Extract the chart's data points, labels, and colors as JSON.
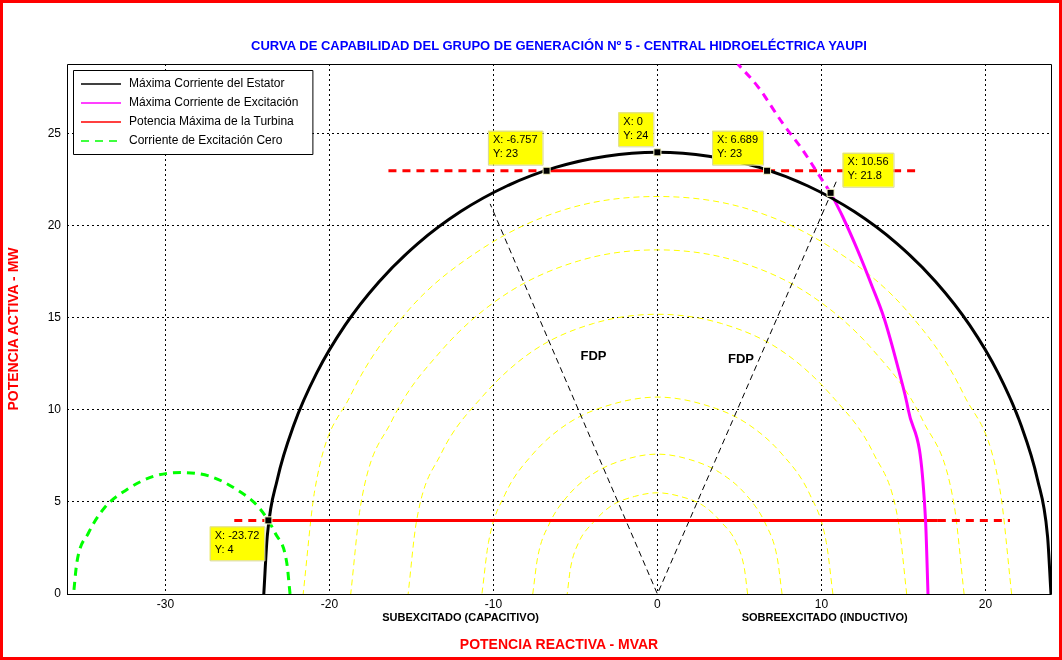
{
  "chart_data": {
    "type": "line",
    "title": "CURVA DE CAPABILIDAD DEL GRUPO DE GENERACIÓN Nº 5 - CENTRAL HIDROELÉCTRICA YAUPI",
    "xlabel": "POTENCIA REACTIVA - MVAR",
    "ylabel": "POTENCIA ACTIVA - MW",
    "xlim": [
      -36,
      24
    ],
    "xticks": [
      -30,
      -20,
      -10,
      0,
      10,
      20
    ],
    "ylim": [
      0,
      28.8
    ],
    "yticks": [
      0,
      5,
      10,
      15,
      20,
      25
    ],
    "grid": true,
    "legend": "top left",
    "annotations": [
      "SUBEXCITADO (CAPACITIVO)",
      "SOBREEXCITADO (INDUCTIVO)",
      "FDP",
      "FDP"
    ],
    "series": [
      {
        "type": "scatter",
        "color": "#000000",
        "marker": "square",
        "x": [
          -23.72,
          -6.757,
          0,
          6.689,
          10.56
        ],
        "values": [
          4,
          23,
          24,
          23,
          21.8
        ],
        "value_labels": [
          "X: -23.72\nY: 4",
          "X: -6.757\nY: 23",
          "X: 0\nY: 24",
          "X: 6.689\nY: 23",
          "X: 10.56\nY: 21.8"
        ]
      },
      {
        "name": "Máxima Corriente del Estator",
        "color": "#000000",
        "line_style": "solid",
        "x": [
          24,
          23.79,
          23.18,
          22.17,
          20.78,
          19.04,
          16.97,
          14.61,
          12,
          9.18,
          6.21,
          3.13,
          0,
          -3.13,
          -6.21,
          -9.18,
          -12,
          -14.61,
          -16.97,
          -19.04,
          -20.78,
          -22.17,
          -23.18,
          -23.79,
          -24
        ],
        "values": [
          0,
          3.13,
          6.21,
          9.18,
          12,
          14.61,
          16.97,
          19.04,
          20.78,
          22.17,
          23.18,
          23.79,
          24,
          23.79,
          23.18,
          22.17,
          20.78,
          19.04,
          16.97,
          14.61,
          12,
          9.18,
          6.21,
          3.13,
          0
        ]
      },
      {
        "name": "Máxima Corriente de Excitación",
        "color": "#ff00ff",
        "line_style": "solid",
        "x": [
          16.5,
          16.35,
          15.3,
          14.7,
          13.8,
          13.1,
          12.2,
          11.3,
          10.56
        ],
        "values": [
          0,
          4,
          10,
          12.2,
          15.05,
          16.7,
          18.7,
          20.5,
          21.8
        ]
      },
      {
        "color": "#ff00ff",
        "line_style": "dashed",
        "x": [
          10.56,
          9.75,
          8.8,
          7.7,
          6.1,
          4.9
        ],
        "values": [
          21.8,
          22.9,
          24.2,
          25.5,
          27.6,
          28.8
        ]
      },
      {
        "name": "Potencia Máxima de la Turbina",
        "color": "#ff0000",
        "line_style": "solid",
        "x": [
          -6.757,
          6.689,
          0,
          -23.72,
          17.1
        ],
        "values": [
          23,
          23,
          null,
          4,
          4
        ]
      },
      {
        "color": "#ff0000",
        "line_style": "dashed",
        "x": [
          -16.4,
          -6.757,
          0,
          6.689,
          15.85,
          0,
          -25.8,
          -23.72,
          0,
          17.1,
          21.5
        ],
        "values": [
          23,
          23,
          null,
          23,
          23,
          null,
          4,
          4,
          null,
          4,
          4
        ]
      },
      {
        "name": "Corriente de Excitación Cero",
        "color": "#00ff00",
        "line_style": "dashed",
        "x": [
          -22.4,
          -22.6,
          -23.3,
          -24.3,
          -25.7,
          -27.3,
          -29,
          -30.7,
          -32.3,
          -33.7,
          -34.7,
          -35.4,
          -35.6
        ],
        "values": [
          0,
          1.7,
          3.3,
          4.7,
          5.7,
          6.4,
          6.6,
          6.4,
          5.7,
          4.7,
          3.3,
          1.7,
          0
        ]
      },
      {
        "color": "#000000",
        "line_style": "dashed",
        "x": [
          10.9,
          0,
          -10.2
        ],
        "values": [
          22.4,
          0,
          21.2
        ]
      },
      {
        "color": "#ffff00",
        "line_style": "dashed",
        "x": [
          5.5,
          5.3,
          4.8,
          3.9,
          2.8,
          1.4,
          0,
          -1.4,
          -2.8,
          -3.9,
          -4.8,
          -5.3,
          -5.5
        ],
        "values": [
          0,
          1.4,
          2.8,
          3.9,
          4.8,
          5.3,
          5.5,
          5.3,
          4.8,
          3.9,
          2.8,
          1.4,
          0
        ]
      },
      {
        "color": "#ffff00",
        "line_style": "dashed",
        "x": [
          7.6,
          7.3,
          6.6,
          5.4,
          3.8,
          2,
          0,
          -2,
          -3.8,
          -5.4,
          -6.6,
          -7.3,
          -7.6
        ],
        "values": [
          0,
          2,
          3.8,
          5.4,
          6.6,
          7.3,
          7.6,
          7.3,
          6.6,
          5.4,
          3.8,
          2,
          0
        ]
      },
      {
        "color": "#ffff00",
        "line_style": "dashed",
        "x": [
          10.7,
          10.3,
          9.3,
          7.6,
          5.4,
          2.8,
          0,
          -2.8,
          -5.4,
          -7.6,
          -9.3,
          -10.3,
          -10.7
        ],
        "values": [
          0,
          2.8,
          5.4,
          7.6,
          9.3,
          10.3,
          10.7,
          10.3,
          9.3,
          7.6,
          5.4,
          2.8,
          0
        ]
      },
      {
        "color": "#ffff00",
        "line_style": "dashed",
        "x": [
          15.2,
          14.7,
          13.2,
          10.7,
          7.6,
          3.9,
          0,
          -3.9,
          -7.6,
          -10.7,
          -13.2,
          -14.7,
          -15.2
        ],
        "values": [
          0,
          3.9,
          7.6,
          10.7,
          13.2,
          14.7,
          15.2,
          14.7,
          13.2,
          10.7,
          7.6,
          3.9,
          0
        ]
      },
      {
        "color": "#ffff00",
        "line_style": "dashed",
        "x": [
          18.7,
          18.1,
          16.2,
          13.2,
          9.4,
          4.8,
          0,
          -4.8,
          -9.4,
          -13.2,
          -16.2,
          -18.1,
          -18.7
        ],
        "values": [
          0,
          4.8,
          9.4,
          13.2,
          16.2,
          18.1,
          18.7,
          18.1,
          16.2,
          13.2,
          9.4,
          4.8,
          0
        ]
      },
      {
        "color": "#ffff00",
        "line_style": "dashed",
        "x": [
          21.6,
          20.9,
          18.7,
          15.3,
          10.8,
          5.6,
          0,
          -5.6,
          -10.8,
          -15.3,
          -18.7,
          -20.9,
          -21.6
        ],
        "values": [
          0,
          5.6,
          10.8,
          15.3,
          18.7,
          20.9,
          21.6,
          20.9,
          18.7,
          15.3,
          10.8,
          5.6,
          0
        ]
      }
    ]
  }
}
